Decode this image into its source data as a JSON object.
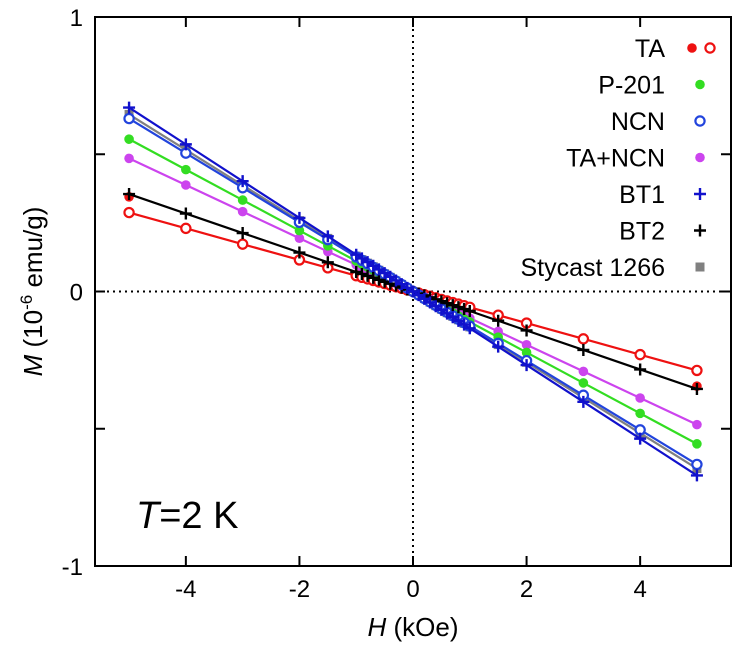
{
  "chart_data": {
    "type": "line",
    "xlabel": {
      "var": "H",
      "unit": " (kOe)"
    },
    "ylabel": {
      "var": "M",
      "pre": " (10",
      "exp": "-6",
      "post": " emu/g)"
    },
    "xlim": [
      -5.6,
      5.6
    ],
    "ylim": [
      -1,
      1
    ],
    "xticks": [
      -4,
      -2,
      0,
      2,
      4
    ],
    "xtick_labels": [
      "-4",
      "-2",
      "0",
      "2",
      "4"
    ],
    "yticks": [
      -1,
      -0.5,
      0,
      0.5,
      1
    ],
    "ytick_labels": [
      "-1",
      "",
      "0",
      "",
      "1"
    ],
    "zero_lines": true,
    "legend_position": "top-right",
    "annotation": {
      "var": "T",
      "rest": "=2 K"
    },
    "x": [
      -5,
      -4,
      -3,
      -2,
      -1.5,
      -1,
      -0.9,
      -0.8,
      -0.7,
      -0.6,
      -0.5,
      -0.4,
      -0.3,
      -0.2,
      -0.1,
      0,
      0.1,
      0.2,
      0.3,
      0.4,
      0.5,
      0.6,
      0.7,
      0.8,
      0.9,
      1,
      1.5,
      2,
      3,
      4,
      5
    ],
    "series": [
      {
        "name": "TA",
        "color": "#ee1111",
        "marker": "filled-open-circle",
        "slope": -0.0575,
        "open_marker_slope": -0.0575
      },
      {
        "name": "P-201",
        "color": "#33dd22",
        "marker": "filled-circle",
        "slope": -0.111
      },
      {
        "name": "NCN",
        "color": "#2244dd",
        "marker": "open-circle",
        "slope": -0.126
      },
      {
        "name": "TA+NCN",
        "color": "#cc44ee",
        "marker": "filled-circle",
        "slope": -0.097
      },
      {
        "name": "BT1",
        "color": "#1111cc",
        "marker": "plus",
        "slope": -0.134
      },
      {
        "name": "BT2",
        "color": "#000000",
        "marker": "plus",
        "slope": -0.071
      },
      {
        "name": "Stycast 1266",
        "color": "#808080",
        "marker": "square",
        "slope": -0.129
      }
    ]
  }
}
